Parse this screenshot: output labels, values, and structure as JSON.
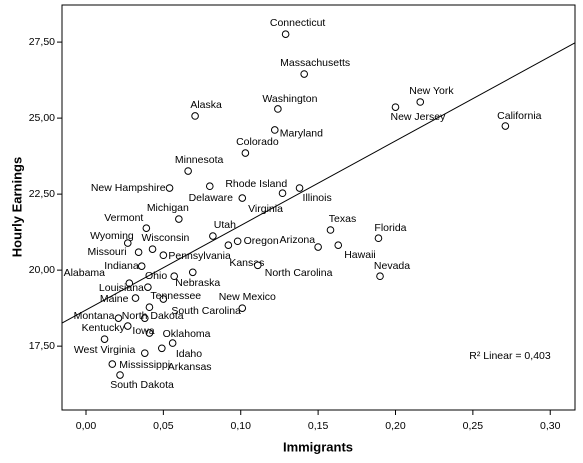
{
  "chart_data": {
    "type": "scatter",
    "x_label": "Immigrants",
    "y_label": "Hourly Earnings",
    "annotation": "R² Linear = 0,403",
    "labels": [
      "Connecticut",
      "Massachusetts",
      "New York",
      "New Jersey",
      "California",
      "Alaska",
      "Washington",
      "Maryland",
      "Colorado",
      "Minnesota",
      "New Hampshire",
      "Delaware",
      "Rhode Island",
      "Virginia",
      "Illinois",
      "Michigan",
      "Vermont",
      "Wyoming",
      "Wisconsin",
      "Utah",
      "Missouri",
      "Oregon",
      "Kansas",
      "Arizona",
      "Texas",
      "Hawaii",
      "Florida",
      "Nevada",
      "Pennsylvania",
      "Indiana",
      "North Carolina",
      "Alabama",
      "Ohio",
      "Nebraska",
      "Louisiana",
      "Maine",
      "Tennessee",
      "New Mexico",
      "South Carolina",
      "Montana",
      "North Dakota",
      "Kentucky",
      "Iowa",
      "Oklahoma",
      "West Virginia",
      "Idaho",
      "Mississippi",
      "Arkansas",
      "South Dakota"
    ],
    "x": [
      0.129,
      0.141,
      0.216,
      0.2,
      0.271,
      0.0705,
      0.124,
      0.122,
      0.103,
      0.066,
      0.054,
      0.08,
      0.101,
      0.127,
      0.138,
      0.06,
      0.039,
      0.027,
      0.043,
      0.082,
      0.034,
      0.098,
      0.092,
      0.15,
      0.158,
      0.163,
      0.189,
      0.19,
      0.05,
      0.036,
      0.111,
      0.028,
      0.057,
      0.069,
      0.04,
      0.032,
      0.05,
      0.101,
      0.041,
      0.021,
      0.038,
      0.027,
      0.041,
      0.056,
      0.012,
      0.049,
      0.017,
      0.038,
      0.022
    ],
    "values": [
      27.76,
      26.45,
      25.53,
      25.36,
      24.74,
      25.07,
      25.3,
      24.61,
      23.85,
      23.26,
      22.7,
      22.76,
      22.37,
      22.53,
      22.7,
      21.68,
      21.38,
      20.89,
      20.69,
      21.12,
      20.59,
      20.95,
      20.82,
      20.76,
      21.32,
      20.82,
      21.05,
      19.8,
      20.49,
      20.13,
      20.16,
      19.57,
      19.8,
      19.93,
      19.44,
      19.08,
      19.05,
      18.75,
      18.78,
      18.42,
      18.42,
      18.16,
      17.93,
      17.6,
      17.73,
      17.43,
      16.91,
      17.27,
      16.55
    ],
    "fit": {
      "intercept": 18.69,
      "slope": 27.8
    },
    "xlim": [
      -0.0155,
      0.316
    ],
    "ylim": [
      15.4,
      28.72
    ],
    "xticks": [
      {
        "value": 0,
        "label": "0,00"
      },
      {
        "value": 0.05,
        "label": "0,05"
      },
      {
        "value": 0.1,
        "label": "0,10"
      },
      {
        "value": 0.15,
        "label": "0,15"
      },
      {
        "value": 0.2,
        "label": "0,20"
      },
      {
        "value": 0.25,
        "label": "0,25"
      },
      {
        "value": 0.3,
        "label": "0,30"
      }
    ],
    "yticks": [
      {
        "value": 17.5,
        "label": "17,50"
      },
      {
        "value": 20,
        "label": "20,00"
      },
      {
        "value": 22.5,
        "label": "22,50"
      },
      {
        "value": 25,
        "label": "25,00"
      },
      {
        "value": 27.5,
        "label": "27,50"
      }
    ]
  }
}
